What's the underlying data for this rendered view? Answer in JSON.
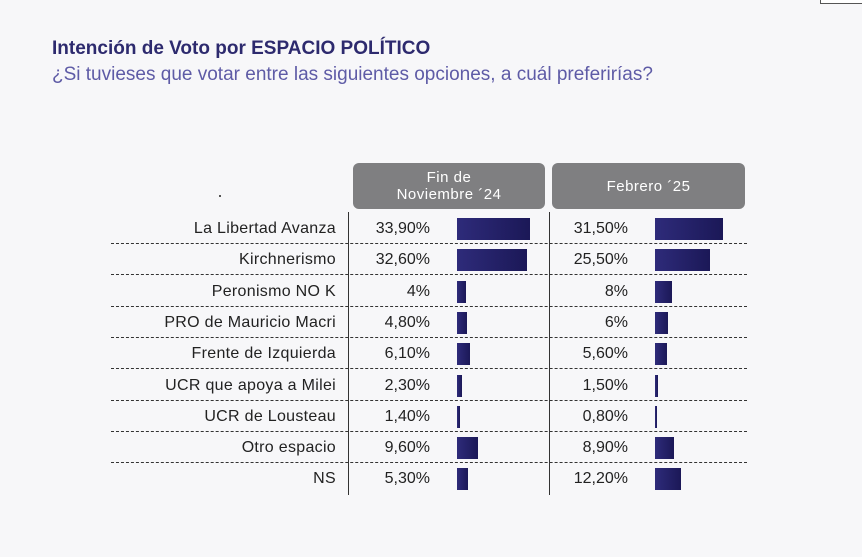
{
  "title": "Intención de Voto por ESPACIO POLÍTICO",
  "subtitle": "¿Si tuvieses que votar entre las siguientes opciones, a cuál preferirías?",
  "colors": {
    "title": "#2d2a6e",
    "subtitle": "#5e5ba6",
    "bar": "#221f66",
    "header_bg": "#7f7f81"
  },
  "chart_data": {
    "type": "bar",
    "orientation": "horizontal",
    "categories": [
      "La Libertad Avanza",
      "Kirchnerismo",
      "Peronismo NO K",
      "PRO de Mauricio Macri",
      "Frente de Izquierda",
      "UCR que apoya a Milei",
      "UCR de Lousteau",
      "Otro espacio",
      "NS"
    ],
    "series": [
      {
        "name": "Fin de Noviembre ´24",
        "values": [
          33.9,
          32.6,
          4,
          4.8,
          6.1,
          2.3,
          1.4,
          9.6,
          5.3
        ],
        "labels": [
          "33,90%",
          "32,60%",
          "4%",
          "4,80%",
          "6,10%",
          "2,30%",
          "1,40%",
          "9,60%",
          "5,30%"
        ]
      },
      {
        "name": "Febrero ´25",
        "values": [
          31.5,
          25.5,
          8,
          6,
          5.6,
          1.5,
          0.8,
          8.9,
          12.2
        ],
        "labels": [
          "31,50%",
          "25,50%",
          "8%",
          "6%",
          "5,60%",
          "1,50%",
          "0,80%",
          "8,90%",
          "12,20%"
        ]
      }
    ],
    "headers": [
      "Fin de\nNoviembre ´24",
      "Febrero ´25"
    ],
    "unit": "%",
    "max": 33.9
  }
}
